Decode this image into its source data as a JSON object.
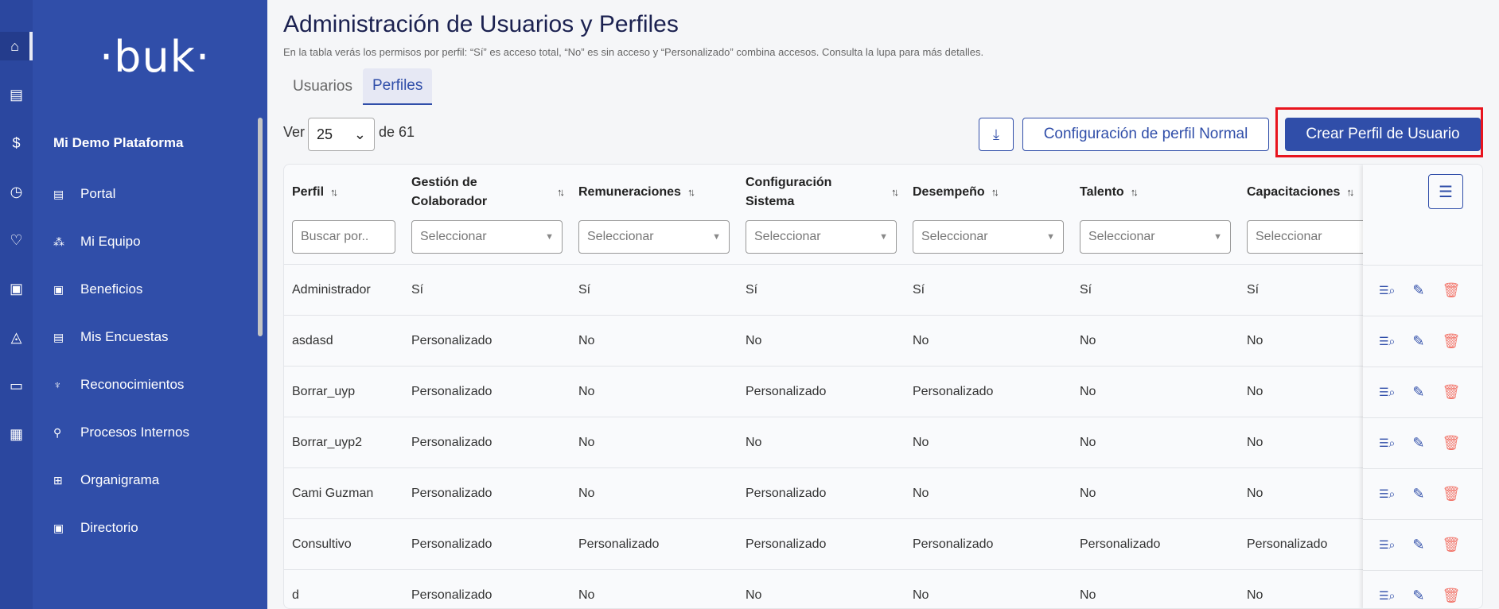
{
  "rail": {
    "items": [
      "home-icon",
      "clipboard-clock-icon",
      "dollar-icon",
      "clock-icon",
      "hand-heart-icon",
      "gift-icon",
      "graduation-cap-icon",
      "folder-icon",
      "store-icon"
    ]
  },
  "sidebar": {
    "logo": "·buk·",
    "org": "Mi Demo Plataforma",
    "items": [
      {
        "label": "Portal",
        "icon": "document-icon"
      },
      {
        "label": "Mi Equipo",
        "icon": "team-icon"
      },
      {
        "label": "Beneficios",
        "icon": "gift-icon"
      },
      {
        "label": "Mis Encuestas",
        "icon": "survey-icon"
      },
      {
        "label": "Reconocimientos",
        "icon": "trophy-icon"
      },
      {
        "label": "Procesos Internos",
        "icon": "user-check-icon"
      },
      {
        "label": "Organigrama",
        "icon": "org-chart-icon"
      },
      {
        "label": "Directorio",
        "icon": "directory-icon"
      }
    ]
  },
  "header": {
    "title": "Administración de Usuarios y Perfiles",
    "subtitle": "En la tabla verás los permisos por perfil: “Sí” es acceso total, “No” es sin acceso y “Personalizado” combina accesos. Consulta la lupa para más detalles."
  },
  "tabs": [
    {
      "label": "Usuarios"
    },
    {
      "label": "Perfiles",
      "active": true
    }
  ],
  "pagination": {
    "ver": "Ver",
    "per_page": "25",
    "total": "de 61"
  },
  "toolbar": {
    "download_icon": "download-icon",
    "config_label": "Configuración de perfil Normal",
    "create_label": "Crear Perfil de Usuario"
  },
  "table": {
    "columns": [
      "Perfil",
      "Gestión de Colaborador",
      "Remuneraciones",
      "Configuración Sistema",
      "Desempeño",
      "Talento",
      "Capacitaciones"
    ],
    "search_placeholder": "Buscar por..",
    "select_placeholder": "Seleccionar",
    "rows": [
      [
        "Administrador",
        "Sí",
        "Sí",
        "Sí",
        "Sí",
        "Sí",
        "Sí"
      ],
      [
        "asdasd",
        "Personalizado",
        "No",
        "No",
        "No",
        "No",
        "No"
      ],
      [
        "Borrar_uyp",
        "Personalizado",
        "No",
        "Personalizado",
        "Personalizado",
        "No",
        "No"
      ],
      [
        "Borrar_uyp2",
        "Personalizado",
        "No",
        "No",
        "No",
        "No",
        "No"
      ],
      [
        "Cami Guzman",
        "Personalizado",
        "No",
        "Personalizado",
        "No",
        "No",
        "No"
      ],
      [
        "Consultivo",
        "Personalizado",
        "Personalizado",
        "Personalizado",
        "Personalizado",
        "Personalizado",
        "Personalizado"
      ],
      [
        "d",
        "Personalizado",
        "No",
        "No",
        "No",
        "No",
        "No"
      ]
    ]
  },
  "colors": {
    "primary": "#304ea9",
    "rail": "#2b479f",
    "delete": "#f2766b",
    "highlight": "#e8141e"
  }
}
